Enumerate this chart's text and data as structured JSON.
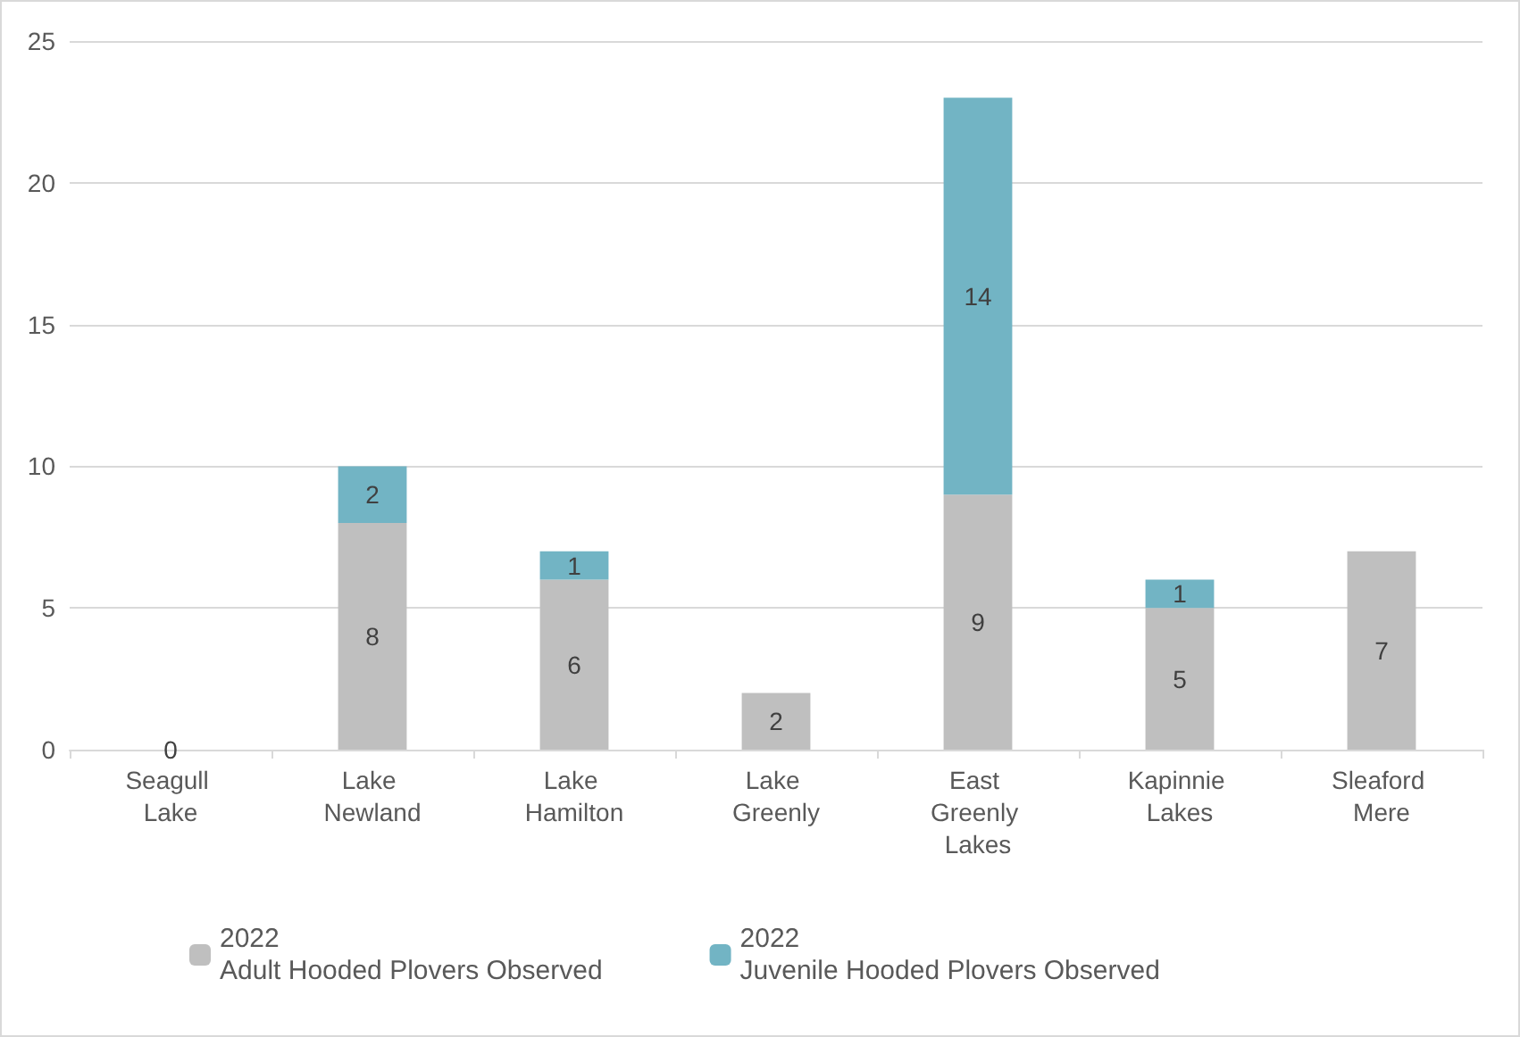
{
  "chart_data": {
    "type": "bar",
    "stacked": true,
    "categories": [
      "Seagull Lake",
      "Lake Newland",
      "Lake Hamilton",
      "Lake Greenly",
      "East Greenly Lakes",
      "Kapinnie Lakes",
      "Sleaford Mere"
    ],
    "series": [
      {
        "name": "2022\nAdult Hooded Plovers Observed",
        "color": "#bfbfbf",
        "values": [
          0,
          8,
          6,
          2,
          9,
          5,
          7
        ]
      },
      {
        "name": "2022\nJuvenile Hooded Plovers Observed",
        "color": "#72b4c4",
        "values": [
          null,
          2,
          1,
          null,
          14,
          1,
          null
        ]
      }
    ],
    "ylim": [
      0,
      25
    ],
    "yticks": [
      0,
      5,
      10,
      15,
      20,
      25
    ],
    "grid": "y",
    "legend": "bottom",
    "data_labels": true
  }
}
